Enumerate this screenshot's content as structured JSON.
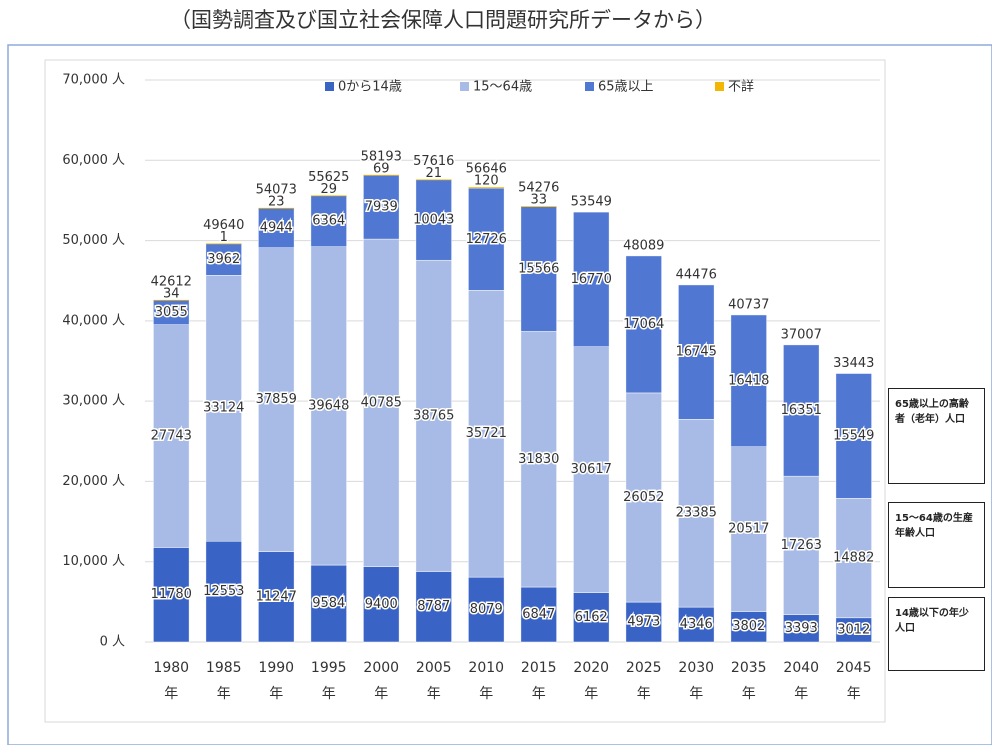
{
  "title": "（国勢調査及び国立社会保障人口問題研究所データから）",
  "chart_data": {
    "type": "stacked_bar",
    "categories": [
      "1980年",
      "1985年",
      "1990年",
      "1995年",
      "2000年",
      "2005年",
      "2010年",
      "2015年",
      "2020年",
      "2025年",
      "2030年",
      "2035年",
      "2040年",
      "2045年"
    ],
    "series": [
      {
        "name": "0から14歳",
        "color": "#3a63c6",
        "values": [
          11780,
          12553,
          11247,
          9584,
          9400,
          8787,
          8079,
          6847,
          6162,
          4973,
          4346,
          3802,
          3393,
          3012
        ]
      },
      {
        "name": "15～64歳",
        "color": "#a8bbe6",
        "values": [
          27743,
          33124,
          37859,
          39648,
          40785,
          38765,
          35721,
          31830,
          30617,
          26052,
          23385,
          20517,
          17263,
          14882
        ]
      },
      {
        "name": "65歳以上",
        "color": "#5077d2",
        "values": [
          3055,
          3962,
          4944,
          6364,
          7939,
          10043,
          12726,
          15566,
          16770,
          17064,
          16745,
          16418,
          16351,
          15549
        ]
      },
      {
        "name": "不詳",
        "color": "#f2b705",
        "values": [
          34,
          1,
          23,
          29,
          69,
          21,
          120,
          33,
          null,
          null,
          null,
          null,
          null,
          null
        ]
      }
    ],
    "totals": [
      42612,
      49640,
      54073,
      55625,
      58193,
      57616,
      56646,
      54276,
      53549,
      48089,
      44476,
      40737,
      37007,
      33443
    ],
    "ylim": [
      0,
      70000
    ],
    "yticks": [
      {
        "value": 0,
        "label": "0 人"
      },
      {
        "value": 10000,
        "label": "10,000 人"
      },
      {
        "value": 20000,
        "label": "20,000 人"
      },
      {
        "value": 30000,
        "label": "30,000 人"
      },
      {
        "value": 40000,
        "label": "40,000 人"
      },
      {
        "value": 50000,
        "label": "50,000 人"
      },
      {
        "value": 60000,
        "label": "60,000 人"
      },
      {
        "value": 70000,
        "label": "70,000 人"
      }
    ],
    "grid": true,
    "legend": "top"
  },
  "notes": [
    "65歳以上の高齢者（老年）人口",
    "15～64歳の生産年齢人口",
    "14歳以下の年少人口"
  ]
}
